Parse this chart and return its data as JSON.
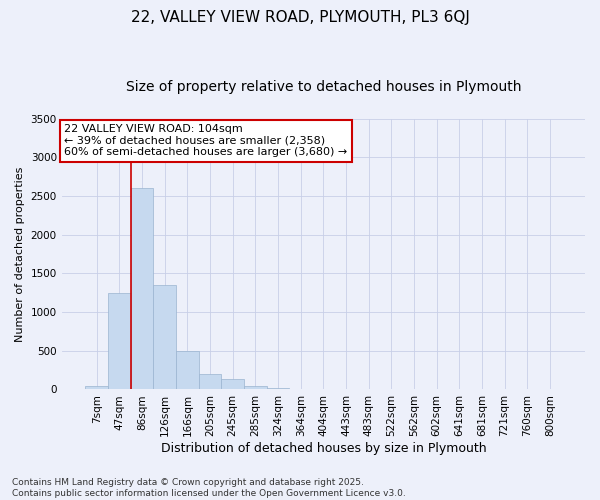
{
  "title": "22, VALLEY VIEW ROAD, PLYMOUTH, PL3 6QJ",
  "subtitle": "Size of property relative to detached houses in Plymouth",
  "xlabel": "Distribution of detached houses by size in Plymouth",
  "ylabel": "Number of detached properties",
  "categories": [
    "7sqm",
    "47sqm",
    "86sqm",
    "126sqm",
    "166sqm",
    "205sqm",
    "245sqm",
    "285sqm",
    "324sqm",
    "364sqm",
    "404sqm",
    "443sqm",
    "483sqm",
    "522sqm",
    "562sqm",
    "602sqm",
    "641sqm",
    "681sqm",
    "721sqm",
    "760sqm",
    "800sqm"
  ],
  "values": [
    50,
    1250,
    2600,
    1350,
    500,
    200,
    130,
    50,
    20,
    10,
    5,
    3,
    2,
    0,
    0,
    0,
    0,
    0,
    0,
    0,
    0
  ],
  "bar_color": "#c6d9ef",
  "bar_edge_color": "#9ab4d0",
  "vline_x": 1.5,
  "vline_color": "#cc0000",
  "annotation_text": "22 VALLEY VIEW ROAD: 104sqm\n← 39% of detached houses are smaller (2,358)\n60% of semi-detached houses are larger (3,680) →",
  "annotation_box_facecolor": "#ffffff",
  "annotation_box_edgecolor": "#cc0000",
  "ylim": [
    0,
    3500
  ],
  "yticks": [
    0,
    500,
    1000,
    1500,
    2000,
    2500,
    3000,
    3500
  ],
  "background_color": "#edf0fa",
  "grid_color": "#c8cfe8",
  "footer_text": "Contains HM Land Registry data © Crown copyright and database right 2025.\nContains public sector information licensed under the Open Government Licence v3.0.",
  "title_fontsize": 11,
  "subtitle_fontsize": 10,
  "xlabel_fontsize": 9,
  "ylabel_fontsize": 8,
  "tick_fontsize": 7.5,
  "annot_fontsize": 8,
  "footer_fontsize": 6.5
}
